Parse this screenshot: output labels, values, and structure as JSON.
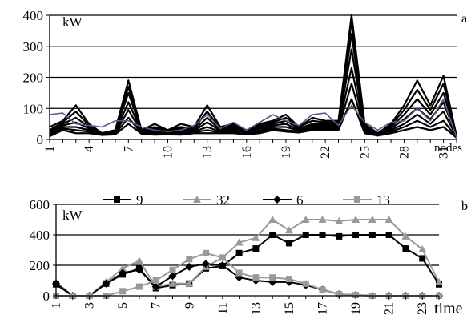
{
  "chart_data": [
    {
      "panel_label": "a",
      "type": "line",
      "unit_label": "kW",
      "xlabel": "nodes",
      "x": [
        1,
        2,
        3,
        4,
        5,
        6,
        7,
        8,
        9,
        10,
        11,
        12,
        13,
        14,
        15,
        16,
        17,
        18,
        19,
        20,
        21,
        22,
        23,
        24,
        25,
        26,
        27,
        28,
        29,
        30,
        31,
        32
      ],
      "x_tick_labels": [
        "1",
        "4",
        "7",
        "10",
        "13",
        "16",
        "19",
        "22",
        "25",
        "28",
        "31"
      ],
      "ylim": [
        0,
        400
      ],
      "y_ticks": [
        0,
        100,
        200,
        300,
        400
      ],
      "grid": true,
      "legend": "none",
      "series_color": "#000000",
      "highlight_color": "#5a5a8a",
      "series": [
        {
          "values": [
            40,
            60,
            110,
            50,
            20,
            30,
            190,
            30,
            50,
            30,
            50,
            40,
            110,
            40,
            50,
            30,
            50,
            60,
            80,
            40,
            70,
            60,
            60,
            400,
            50,
            20,
            50,
            110,
            190,
            110,
            205,
            10
          ]
        },
        {
          "values": [
            30,
            55,
            90,
            45,
            20,
            30,
            170,
            30,
            40,
            30,
            40,
            35,
            90,
            35,
            45,
            30,
            45,
            55,
            70,
            40,
            60,
            55,
            55,
            380,
            45,
            20,
            45,
            95,
            160,
            95,
            180,
            10
          ]
        },
        {
          "values": [
            25,
            50,
            70,
            40,
            20,
            25,
            150,
            28,
            35,
            25,
            35,
            30,
            70,
            30,
            40,
            25,
            40,
            50,
            60,
            35,
            50,
            50,
            50,
            340,
            40,
            18,
            40,
            80,
            130,
            80,
            150,
            10
          ]
        },
        {
          "values": [
            20,
            45,
            55,
            35,
            18,
            22,
            120,
            25,
            30,
            22,
            30,
            28,
            55,
            28,
            35,
            22,
            35,
            45,
            50,
            30,
            45,
            45,
            45,
            290,
            35,
            16,
            35,
            65,
            100,
            65,
            120,
            8
          ]
        },
        {
          "values": [
            15,
            40,
            40,
            30,
            16,
            20,
            95,
            22,
            25,
            20,
            25,
            25,
            40,
            25,
            30,
            20,
            30,
            40,
            40,
            28,
            40,
            40,
            40,
            230,
            30,
            15,
            30,
            50,
            80,
            50,
            90,
            8
          ]
        },
        {
          "values": [
            12,
            35,
            30,
            25,
            15,
            18,
            70,
            20,
            20,
            18,
            20,
            22,
            30,
            22,
            25,
            18,
            25,
            35,
            30,
            25,
            35,
            35,
            35,
            180,
            25,
            14,
            25,
            40,
            60,
            40,
            60,
            6
          ]
        },
        {
          "values": [
            10,
            30,
            20,
            20,
            14,
            16,
            50,
            18,
            15,
            16,
            15,
            20,
            20,
            20,
            20,
            16,
            20,
            30,
            25,
            22,
            30,
            30,
            30,
            130,
            20,
            12,
            20,
            30,
            40,
            30,
            40,
            5
          ]
        },
        {
          "values": [
            80,
            85,
            50,
            45,
            40,
            60,
            60,
            40,
            30,
            25,
            30,
            45,
            80,
            35,
            55,
            30,
            55,
            80,
            60,
            45,
            80,
            85,
            45,
            110,
            55,
            30,
            55,
            60,
            100,
            60,
            130,
            5
          ]
        }
      ]
    },
    {
      "panel_label": "b",
      "type": "line",
      "unit_label": "kW",
      "xlabel": "time",
      "x": [
        1,
        2,
        3,
        4,
        5,
        6,
        7,
        8,
        9,
        10,
        11,
        12,
        13,
        14,
        15,
        16,
        17,
        18,
        19,
        20,
        21,
        22,
        23,
        24
      ],
      "x_tick_labels": [
        "1",
        "3",
        "5",
        "7",
        "9",
        "11",
        "13",
        "15",
        "17",
        "19",
        "21",
        "23"
      ],
      "ylim": [
        0,
        600
      ],
      "y_ticks": [
        0,
        200,
        400,
        600
      ],
      "grid": true,
      "legend": "top",
      "series": [
        {
          "name": "9",
          "color": "#000000",
          "marker": "square",
          "values": [
            75,
            0,
            0,
            80,
            140,
            180,
            50,
            70,
            80,
            180,
            195,
            280,
            310,
            400,
            345,
            400,
            400,
            390,
            400,
            400,
            400,
            310,
            245,
            75
          ]
        },
        {
          "name": "32",
          "color": "#999999",
          "marker": "triangle",
          "values": [
            90,
            0,
            0,
            90,
            180,
            230,
            60,
            80,
            80,
            190,
            250,
            350,
            380,
            500,
            430,
            500,
            500,
            490,
            500,
            500,
            500,
            390,
            305,
            90
          ]
        },
        {
          "name": "6",
          "color": "#000000",
          "marker": "diamond",
          "values": [
            80,
            0,
            0,
            80,
            150,
            170,
            60,
            130,
            190,
            210,
            200,
            120,
            100,
            90,
            90,
            70,
            40,
            10,
            5,
            0,
            0,
            0,
            0,
            0
          ]
        },
        {
          "name": "13",
          "color": "#999999",
          "marker": "square",
          "values": [
            0,
            0,
            0,
            0,
            30,
            60,
            100,
            170,
            240,
            280,
            250,
            150,
            120,
            120,
            110,
            80,
            40,
            10,
            5,
            0,
            0,
            0,
            0,
            0
          ]
        }
      ]
    }
  ]
}
